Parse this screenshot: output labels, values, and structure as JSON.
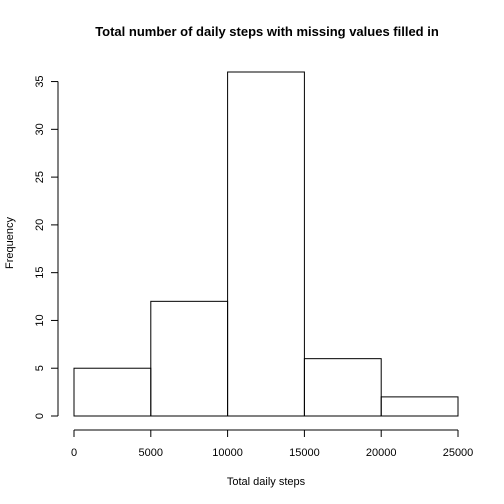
{
  "chart_data": {
    "type": "bar",
    "title": "Total number of daily steps with missing values filled in",
    "xlabel": "Total daily steps",
    "ylabel": "Frequency",
    "bins": [
      {
        "start": 0,
        "end": 5000,
        "count": 5
      },
      {
        "start": 5000,
        "end": 10000,
        "count": 12
      },
      {
        "start": 10000,
        "end": 15000,
        "count": 36
      },
      {
        "start": 15000,
        "end": 20000,
        "count": 6
      },
      {
        "start": 20000,
        "end": 25000,
        "count": 2
      }
    ],
    "xlim": [
      0,
      25000
    ],
    "ylim": [
      0,
      36
    ],
    "x_ticks": [
      0,
      5000,
      10000,
      15000,
      20000,
      25000
    ],
    "x_tick_labels": [
      "0",
      "5000",
      "10000",
      "15000",
      "20000",
      "25000"
    ],
    "y_ticks": [
      0,
      5,
      10,
      15,
      20,
      25,
      30,
      35
    ],
    "y_tick_labels": [
      "0",
      "5",
      "10",
      "15",
      "20",
      "25",
      "30",
      "35"
    ],
    "grid": false,
    "legend": "none"
  }
}
